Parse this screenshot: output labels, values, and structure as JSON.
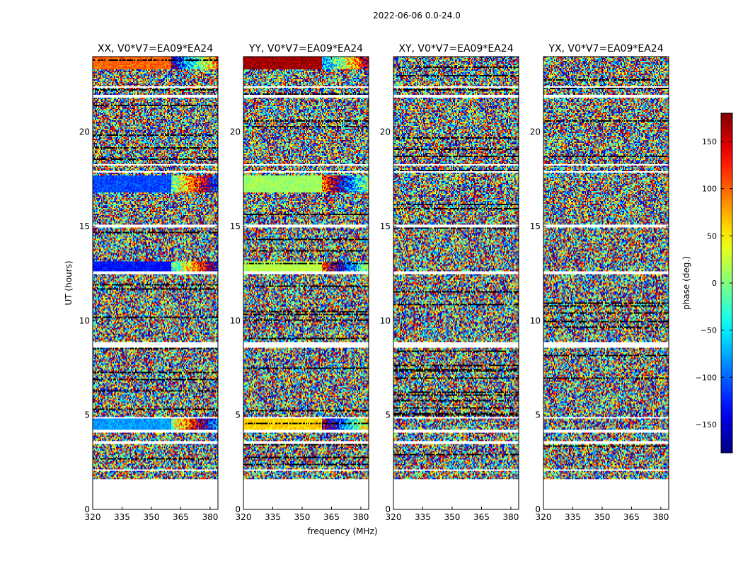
{
  "chart_data": {
    "type": "heatmap",
    "suptitle": "2022-06-06 0.0-24.0",
    "xlabel": "frequency (MHz)",
    "ylabel": "UT (hours)",
    "xlim": [
      320,
      384
    ],
    "ylim": [
      0,
      24
    ],
    "xticks": [
      320,
      335,
      350,
      365,
      380
    ],
    "yticks": [
      0,
      5,
      10,
      15,
      20
    ],
    "colorbar": {
      "label": "phase (deg.)",
      "range": [
        -180,
        180
      ],
      "ticks": [
        150,
        100,
        50,
        0,
        -50,
        -100,
        -150
      ],
      "tick_labels": [
        "150",
        "100",
        "50",
        "0",
        "−50",
        "−100",
        "−150"
      ],
      "colormap": "jet"
    },
    "data_start_hour": 1.6,
    "data_end_hour": 24.0,
    "flagged_bands_hours": [
      [
        2.05,
        2.12
      ],
      [
        3.45,
        3.6
      ],
      [
        4.1,
        4.2
      ],
      [
        4.82,
        4.92
      ],
      [
        8.6,
        8.85
      ],
      [
        12.45,
        12.6
      ],
      [
        14.95,
        15.05
      ],
      [
        17.85,
        17.95
      ],
      [
        18.2,
        18.3
      ],
      [
        21.85,
        22.0
      ],
      [
        22.35,
        22.42
      ],
      [
        23.3,
        23.35
      ]
    ],
    "panels": [
      {
        "name": "XX",
        "title": "XX, V0*V7=EA09*EA24",
        "coherent_bands": [
          [
            4.2,
            4.82,
            -80
          ],
          [
            12.6,
            13.1,
            -130
          ],
          [
            16.8,
            17.7,
            -110
          ],
          [
            23.35,
            24.0,
            100
          ]
        ]
      },
      {
        "name": "YY",
        "title": "YY, V0*V7=EA09*EA24",
        "coherent_bands": [
          [
            4.2,
            4.82,
            60
          ],
          [
            12.6,
            13.1,
            20
          ],
          [
            16.8,
            17.7,
            10
          ],
          [
            23.35,
            24.0,
            170
          ]
        ]
      },
      {
        "name": "XY",
        "title": "XY, V0*V7=EA09*EA24",
        "coherent_bands": []
      },
      {
        "name": "YX",
        "title": "YX, V0*V7=EA09*EA24",
        "coherent_bands": []
      }
    ]
  }
}
